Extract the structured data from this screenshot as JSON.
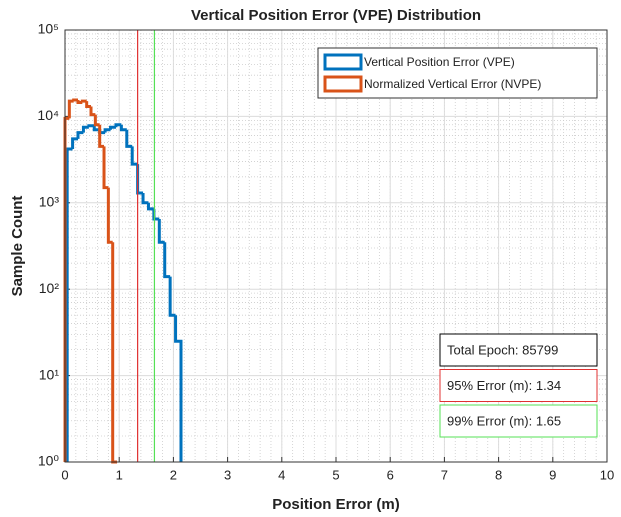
{
  "chart_data": {
    "type": "histogram",
    "title": "Vertical Position Error (VPE) Distribution",
    "x_label": "Position Error (m)",
    "y_label": "Sample Count",
    "log_y": true,
    "grid": true,
    "minor_grid": true,
    "legend_position": "upper right",
    "series": [
      {
        "name": "Vertical Position Error (VPE)",
        "color": "#0072bd",
        "bins": [
          0.04,
          0.14,
          0.24,
          0.34,
          0.44,
          0.54,
          0.64,
          0.74,
          0.84,
          0.94,
          1.04,
          1.14,
          1.24,
          1.34,
          1.44,
          1.54,
          1.64,
          1.74,
          1.84,
          1.94,
          2.04,
          2.14
        ],
        "values": [
          4200,
          5500,
          6500,
          7500,
          7800,
          7000,
          6500,
          7000,
          7500,
          8000,
          7000,
          4500,
          2800,
          1300,
          1000,
          850,
          650,
          350,
          140,
          50,
          25
        ]
      },
      {
        "name": "Normalized Vertical Error (NVPE)",
        "color": "#d95319",
        "bins": [
          0,
          0.08,
          0.16,
          0.24,
          0.32,
          0.4,
          0.48,
          0.56,
          0.64,
          0.72,
          0.8,
          0.88,
          0.96
        ],
        "values": [
          9500,
          15000,
          15500,
          14500,
          15000,
          13000,
          10500,
          8000,
          4500,
          1500,
          350,
          1
        ]
      }
    ],
    "reference_lines": [
      {
        "x": 1.34,
        "color": "#e03030"
      },
      {
        "x": 1.65,
        "color": "#55e055"
      }
    ],
    "annotations": [
      {
        "text": "Total Epoch: 85799",
        "color": "#000000"
      },
      {
        "text": "95% Error (m): 1.34",
        "color": "#e03030"
      },
      {
        "text": "99% Error (m): 1.65",
        "color": "#55e055"
      }
    ],
    "xlim": [
      0,
      10
    ],
    "xticks": [
      0,
      1,
      2,
      3,
      4,
      5,
      6,
      7,
      8,
      9,
      10
    ],
    "ylim": [
      1,
      100000
    ],
    "yticks": [
      {
        "value": 1,
        "label": "10⁰"
      },
      {
        "value": 10,
        "label": "10¹"
      },
      {
        "value": 100,
        "label": "10²"
      },
      {
        "value": 1000,
        "label": "10³"
      },
      {
        "value": 10000,
        "label": "10⁴"
      },
      {
        "value": 100000,
        "label": "10⁵"
      }
    ]
  }
}
